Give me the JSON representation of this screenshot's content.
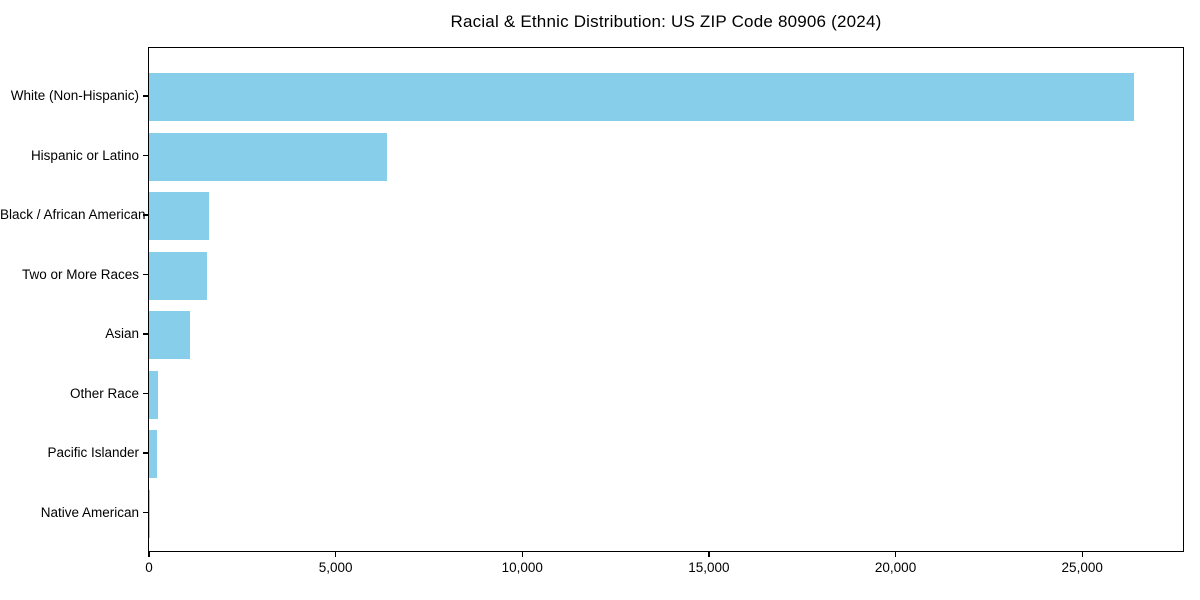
{
  "figure": {
    "background": "#ffffff"
  },
  "chart_data": {
    "type": "bar",
    "orientation": "horizontal",
    "title": "Racial & Ethnic Distribution: US ZIP Code 80906 (2024)",
    "categories": [
      "White (Non-Hispanic)",
      "Hispanic or Latino",
      "Black / African American",
      "Two or More Races",
      "Asian",
      "Other Race",
      "Pacific Islander",
      "Native American"
    ],
    "values": [
      26400,
      6380,
      1620,
      1560,
      1100,
      250,
      220,
      40
    ],
    "bar_color": "#87CEEB",
    "axis_color": "#000000",
    "text_color": "#000000",
    "xlabel": "",
    "ylabel": "",
    "xlim": [
      0,
      27700
    ],
    "xticks": [
      0,
      5000,
      10000,
      15000,
      20000,
      25000
    ],
    "xtick_labels": [
      "0",
      "5,000",
      "10,000",
      "15,000",
      "20,000",
      "25,000"
    ],
    "grid": false,
    "legend": null
  }
}
